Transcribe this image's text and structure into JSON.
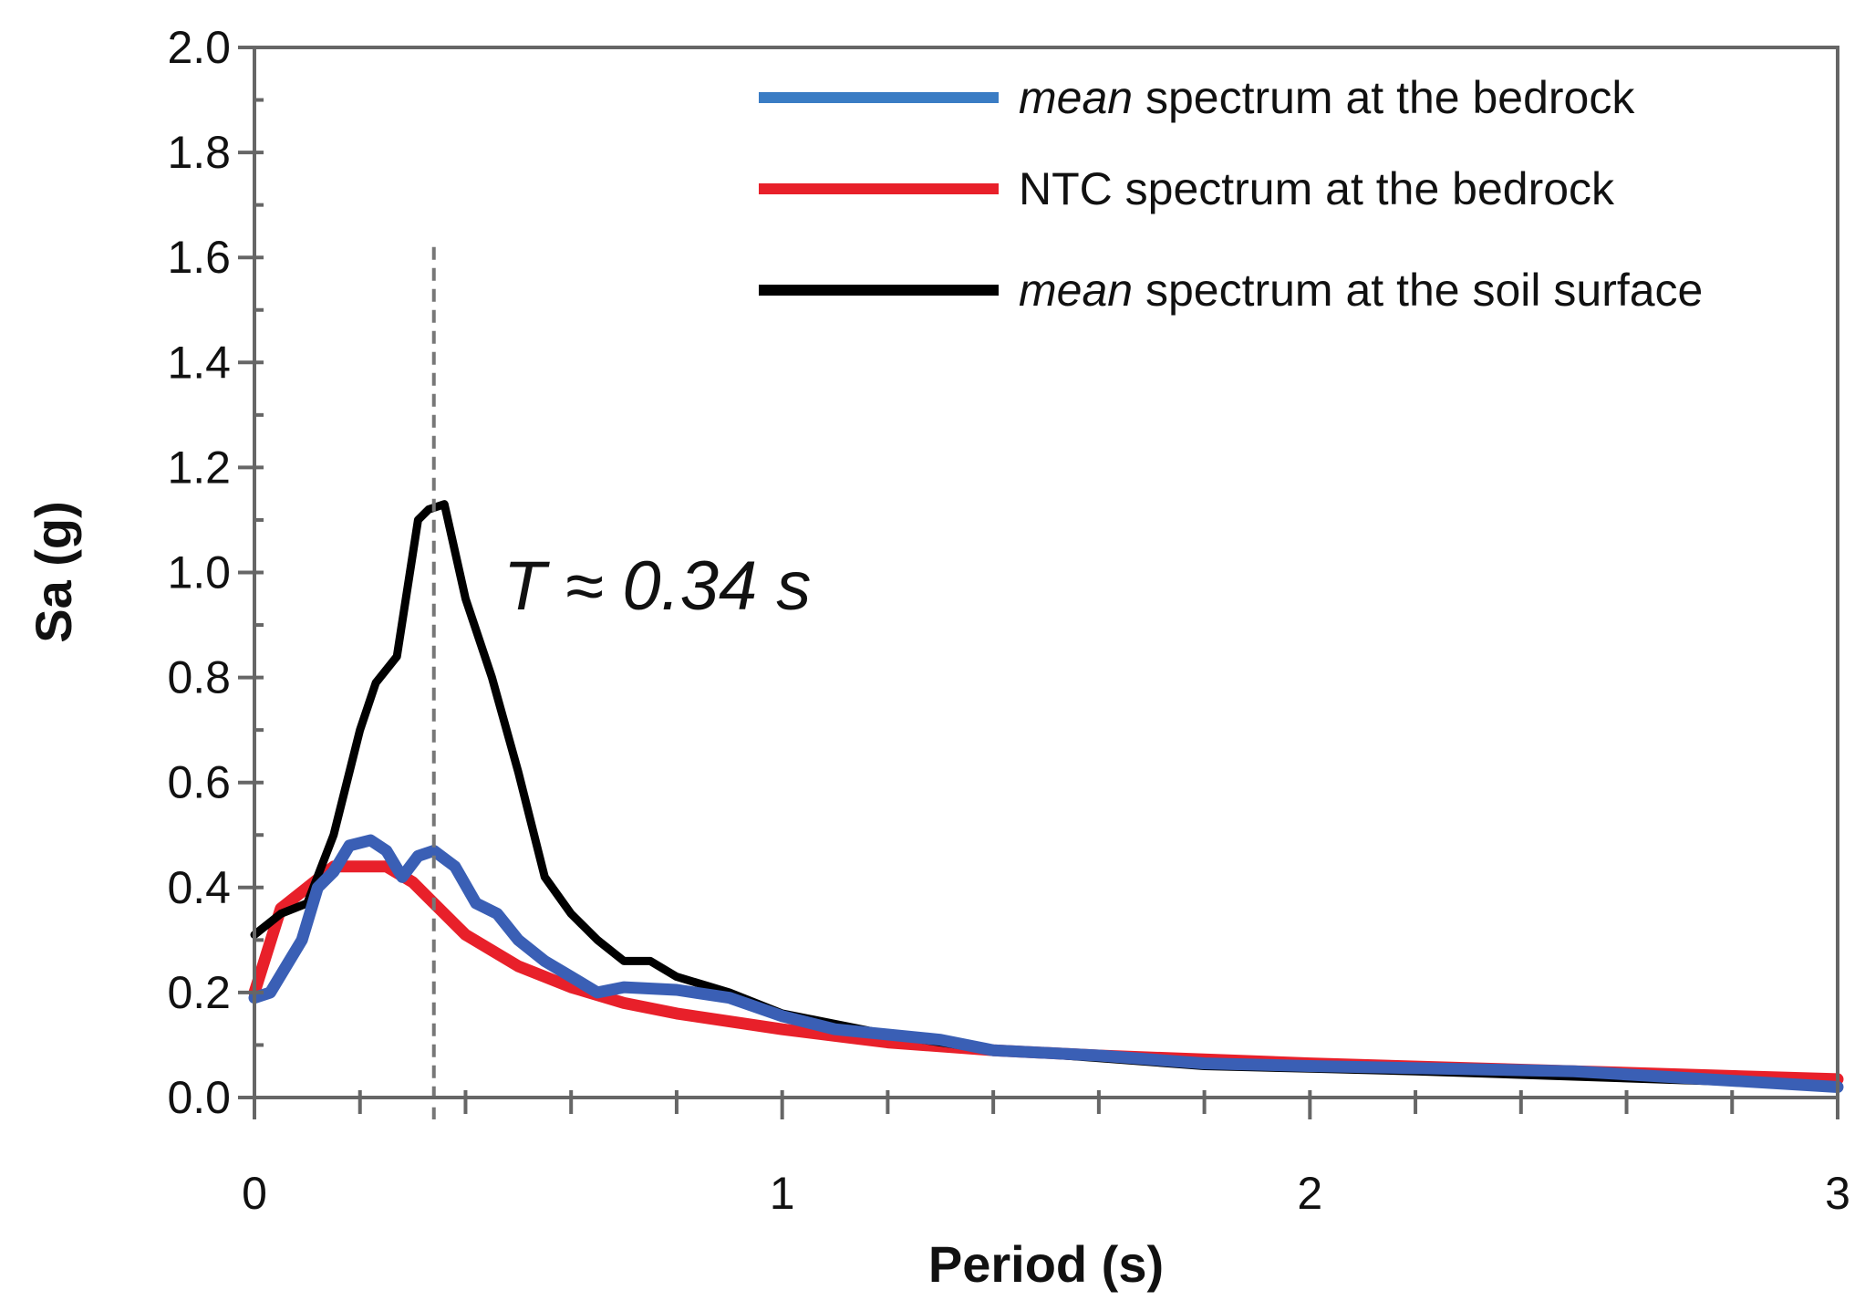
{
  "chart_data": {
    "type": "line",
    "title": "",
    "xlabel": "Period (s)",
    "ylabel": "Sa (g)",
    "xlim": [
      0,
      3
    ],
    "ylim": [
      0,
      2.0
    ],
    "x_ticks": [
      "0",
      "1",
      "2",
      "3"
    ],
    "y_ticks": [
      "0.0",
      "0.2",
      "0.4",
      "0.6",
      "0.8",
      "1.0",
      "1.2",
      "1.4",
      "1.6",
      "1.8",
      "2.0"
    ],
    "grid": false,
    "legend_position": "top-right",
    "annotation": {
      "text": "T ≈ 0.34 s",
      "x": 0.34
    },
    "series": [
      {
        "name_italic": "mean",
        "name_rest": " spectrum at the bedrock",
        "color": "#3a5fb5",
        "legend_color": "#3a7cc4",
        "x": [
          0,
          0.03,
          0.06,
          0.09,
          0.12,
          0.15,
          0.18,
          0.22,
          0.25,
          0.28,
          0.31,
          0.34,
          0.38,
          0.42,
          0.46,
          0.5,
          0.55,
          0.6,
          0.65,
          0.7,
          0.8,
          0.9,
          1.0,
          1.1,
          1.3,
          1.4,
          1.6,
          1.8,
          2.0,
          2.5,
          3.0
        ],
        "y": [
          0.19,
          0.2,
          0.25,
          0.3,
          0.4,
          0.43,
          0.48,
          0.49,
          0.47,
          0.42,
          0.46,
          0.47,
          0.44,
          0.37,
          0.35,
          0.3,
          0.26,
          0.23,
          0.2,
          0.21,
          0.205,
          0.19,
          0.155,
          0.13,
          0.11,
          0.09,
          0.08,
          0.065,
          0.06,
          0.05,
          0.02
        ]
      },
      {
        "name_italic": "",
        "name_rest": "NTC spectrum at the bedrock",
        "color": "#e8202a",
        "legend_color": "#e8202a",
        "x": [
          0,
          0.05,
          0.1,
          0.15,
          0.2,
          0.25,
          0.3,
          0.35,
          0.4,
          0.5,
          0.6,
          0.7,
          0.8,
          1.0,
          1.2,
          1.4,
          1.6,
          2.0,
          2.5,
          3.0
        ],
        "y": [
          0.2,
          0.36,
          0.4,
          0.44,
          0.44,
          0.44,
          0.41,
          0.36,
          0.31,
          0.25,
          0.21,
          0.18,
          0.16,
          0.13,
          0.105,
          0.09,
          0.08,
          0.065,
          0.05,
          0.035
        ]
      },
      {
        "name_italic": "mean",
        "name_rest": " spectrum at the soil surface",
        "color": "#000000",
        "legend_color": "#000000",
        "x": [
          0,
          0.05,
          0.1,
          0.15,
          0.2,
          0.23,
          0.27,
          0.31,
          0.33,
          0.36,
          0.4,
          0.45,
          0.5,
          0.55,
          0.6,
          0.65,
          0.7,
          0.75,
          0.8,
          0.9,
          1.0,
          1.2,
          1.4,
          1.6,
          1.8,
          2.0,
          2.2,
          2.5,
          2.8,
          3.0
        ],
        "y": [
          0.31,
          0.35,
          0.37,
          0.5,
          0.7,
          0.79,
          0.84,
          1.1,
          1.12,
          1.13,
          0.95,
          0.8,
          0.62,
          0.42,
          0.35,
          0.3,
          0.26,
          0.26,
          0.23,
          0.2,
          0.16,
          0.12,
          0.09,
          0.075,
          0.06,
          0.055,
          0.05,
          0.04,
          0.03,
          0.02
        ]
      }
    ]
  }
}
